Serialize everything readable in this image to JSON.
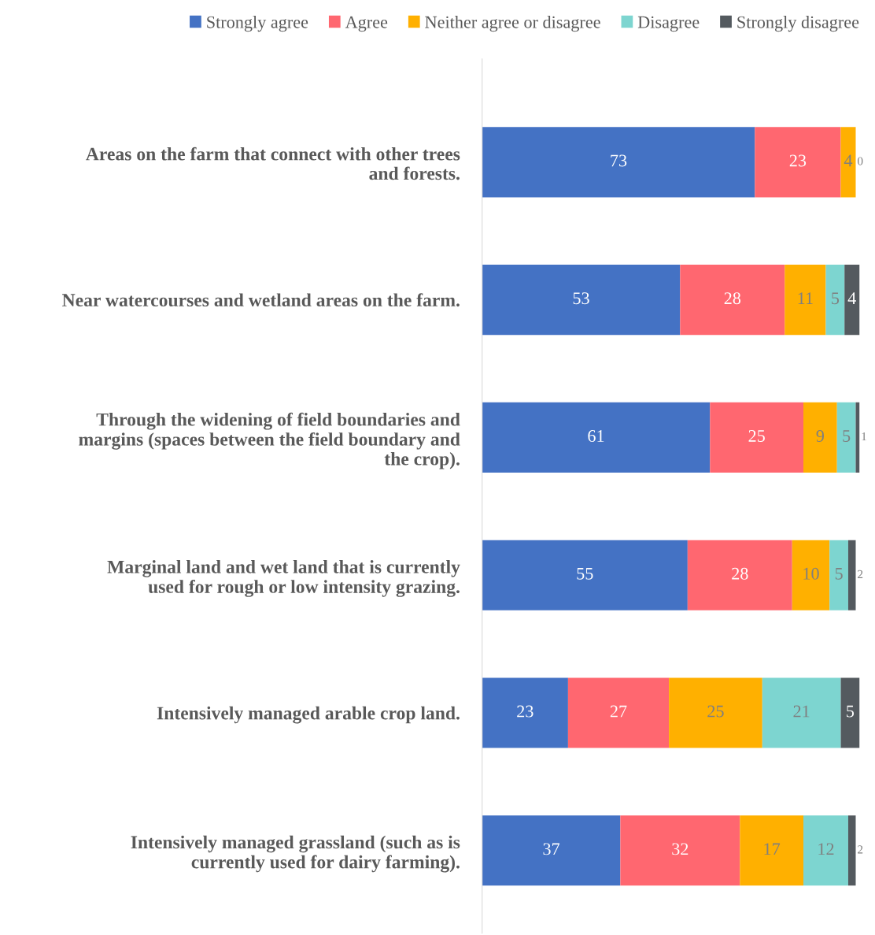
{
  "chart_data": {
    "type": "bar",
    "orientation": "horizontal",
    "stacked": true,
    "legend": "top",
    "grid": false,
    "categories": [
      "Areas on the farm that connect with other trees and forests.",
      "Near watercourses and wetland areas on the farm.",
      "Through the widening of field boundaries and margins (spaces between the field boundary and the crop).",
      "Marginal land and wet land that is currently used for rough or low intensity grazing.",
      "Intensively managed arable crop land.",
      "Intensively managed grassland (such as is currently used for dairy farming)."
    ],
    "series": [
      {
        "name": "Strongly agree",
        "color": "#4472c4",
        "values": [
          73,
          53,
          61,
          55,
          23,
          37
        ],
        "value_labels": [
          "73",
          "53",
          "61",
          "55",
          "23",
          "37"
        ]
      },
      {
        "name": "Agree",
        "color": "#ff6770",
        "values": [
          23,
          28,
          25,
          28,
          27,
          32
        ],
        "value_labels": [
          "23",
          "28",
          "25",
          "28",
          "27",
          "32"
        ]
      },
      {
        "name": "Neither agree or disagree",
        "color": "#ffb000",
        "values": [
          4,
          11,
          9,
          10,
          25,
          17
        ],
        "value_labels": [
          "4",
          "11",
          "9",
          "10",
          "25",
          "17"
        ]
      },
      {
        "name": "Disagree",
        "color": "#7dd5d0",
        "values": [
          0,
          5,
          5,
          5,
          21,
          12
        ],
        "value_labels": [
          "0",
          "5",
          "5",
          "5",
          "21",
          "12"
        ]
      },
      {
        "name": "Strongly disagree",
        "color": "#545a5f",
        "values": [
          0,
          4,
          1,
          2,
          5,
          2
        ],
        "value_labels": [
          null,
          "4",
          "1",
          "2",
          "5",
          "2"
        ]
      }
    ]
  }
}
